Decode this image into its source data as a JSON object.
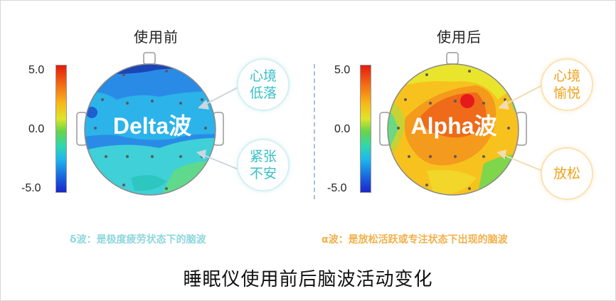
{
  "left_panel": {
    "title": "使用前",
    "scale": {
      "max": "5.0",
      "mid": "0.0",
      "min": "-5.0"
    },
    "wave_label": "Delta波",
    "bubble_top": "心境\n低落",
    "bubble_bottom": "紧张\n不安",
    "caption": "δ波：是极度疲劳状态下的脑波"
  },
  "right_panel": {
    "title": "使用后",
    "scale": {
      "max": "5.0",
      "mid": "0.0",
      "min": "-5.0"
    },
    "wave_label": "Alpha波",
    "bubble_top": "心境\n愉悦",
    "bubble_bottom": "放松",
    "caption": "α波：是放松活跃或专注状态下出现的脑波"
  },
  "main_title": "睡眠仪使用前后脑波活动变化",
  "colors": {
    "cool_text": "#38bfc7",
    "warm_text": "#f0a21c"
  }
}
